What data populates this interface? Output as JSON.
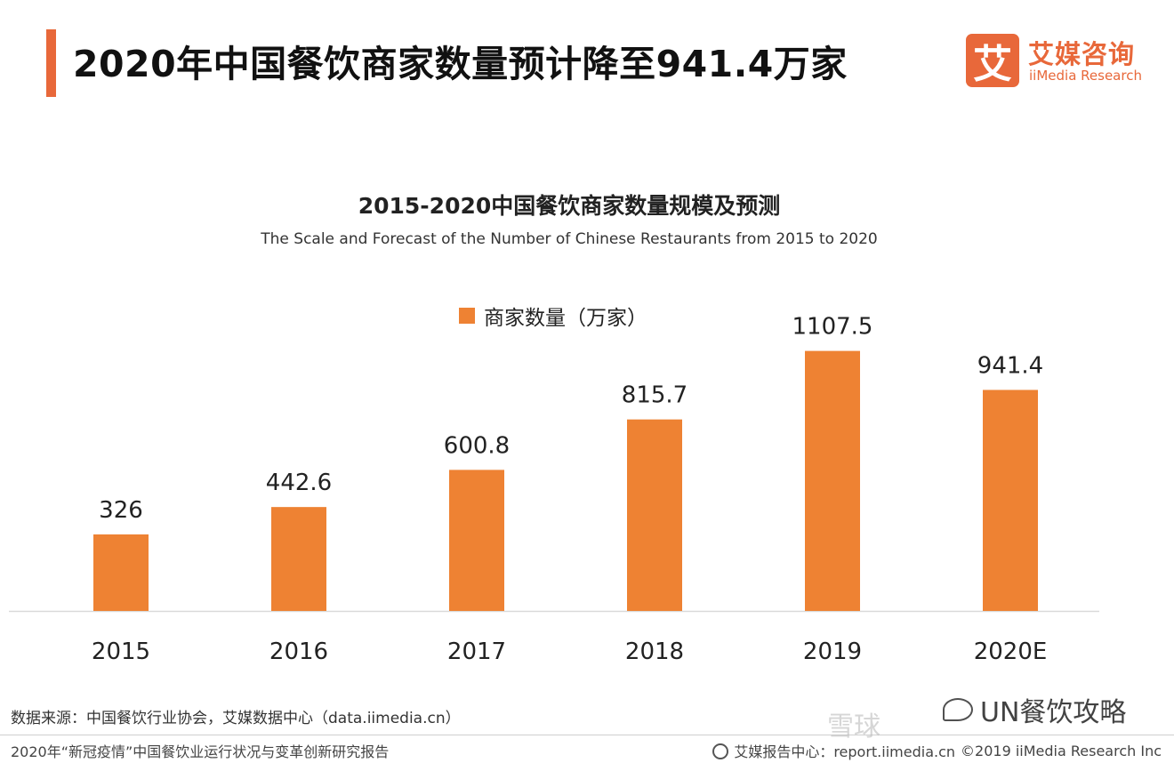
{
  "header": {
    "title": "2020年中国餐饮商家数量预计降至941.4万家",
    "accent_color": "#E8683A"
  },
  "brand": {
    "mark": "艾",
    "name_cn": "艾媒咨询",
    "name_en": "iiMedia Research",
    "color": "#E8683A"
  },
  "chart_data": {
    "type": "bar",
    "title": "2015-2020中国餐饮商家数量规模及预测",
    "subtitle": "The Scale and Forecast of the Number of Chinese Restaurants from 2015 to 2020",
    "categories": [
      "2015",
      "2016",
      "2017",
      "2018",
      "2019",
      "2020E"
    ],
    "series": [
      {
        "name": "商家数量（万家）",
        "values": [
          326,
          442.6,
          600.8,
          815.7,
          1107.5,
          941.4
        ],
        "color": "#EE8233"
      }
    ],
    "data_labels": [
      "326",
      "442.6",
      "600.8",
      "815.7",
      "1107.5",
      "941.4"
    ],
    "ylim": [
      0,
      1250
    ],
    "grid": false,
    "legend": "top-center"
  },
  "footer": {
    "source": "数据来源：中国餐饮行业协会，艾媒数据中心（data.iimedia.cn）",
    "report_name": "2020年“新冠疫情”中国餐饮业运行状况与变革创新研究报告",
    "report_center": "艾媒报告中心：report.iimedia.cn",
    "copyright": "©2019  iiMedia Research  Inc"
  },
  "watermark": {
    "text": "UN餐饮攻略",
    "ghost": "雪球"
  }
}
